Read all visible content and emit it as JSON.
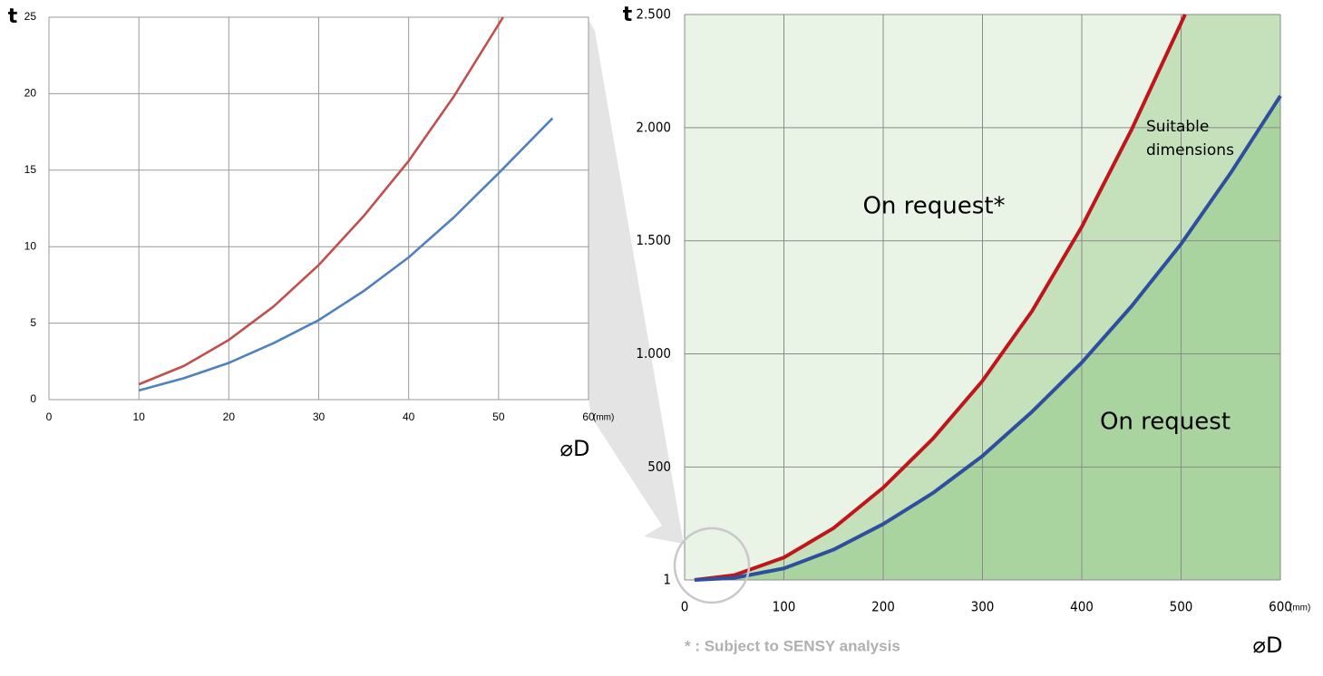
{
  "chart_data": [
    {
      "type": "line",
      "y_label": "t",
      "x_label": "⌀D",
      "x_unit": "(mm)",
      "xlim": [
        0,
        60
      ],
      "xticks": [
        0,
        10,
        20,
        30,
        40,
        50,
        60
      ],
      "ylim": [
        0,
        25
      ],
      "yticks": [
        0,
        5,
        10,
        15,
        20,
        25
      ],
      "grid": true,
      "series": [
        {
          "color": "#c0504d",
          "x": [
            10,
            15,
            20,
            25,
            30,
            35,
            40,
            45,
            50.5
          ],
          "values": [
            1.0,
            2.2,
            3.9,
            6.1,
            8.8,
            12.0,
            15.6,
            19.8,
            25
          ]
        },
        {
          "color": "#4f81bd",
          "x": [
            10,
            15,
            20,
            25,
            30,
            35,
            40,
            45,
            50,
            56
          ],
          "values": [
            0.6,
            1.4,
            2.4,
            3.7,
            5.2,
            7.1,
            9.3,
            11.9,
            14.8,
            18.4
          ]
        }
      ]
    },
    {
      "type": "line",
      "y_label": "t",
      "x_label": "⌀D",
      "x_unit": "(mm)",
      "xlim": [
        0,
        600
      ],
      "xticks": [
        0,
        100,
        200,
        300,
        400,
        500,
        600
      ],
      "ylim": [
        1,
        2500
      ],
      "yticks": [
        1,
        500,
        {
          "value": 1000,
          "label": "1.000"
        },
        {
          "value": 1500,
          "label": "1.500"
        },
        {
          "value": 2000,
          "label": "2.000"
        },
        {
          "value": 2500,
          "label": "2.500"
        }
      ],
      "grid": true,
      "fill_colors": [
        "#eaf4e6",
        "#c4e1bb",
        "#aad49f"
      ],
      "series": [
        {
          "color": "#c0161b",
          "x": [
            10,
            50,
            100,
            150,
            200,
            250,
            300,
            350,
            400,
            450,
            504
          ],
          "values": [
            1,
            22,
            100,
            230,
            409,
            625,
            881,
            1190,
            1562,
            1990,
            2500
          ]
        },
        {
          "color": "#2e4f9e",
          "x": [
            10,
            50,
            100,
            150,
            200,
            250,
            300,
            350,
            400,
            450,
            500,
            550,
            600
          ],
          "values": [
            1,
            10,
            52,
            135,
            248,
            385,
            549,
            745,
            962,
            1210,
            1486,
            1800,
            2140
          ]
        }
      ],
      "annotations": [
        "On request*",
        "Suitable dimensions",
        "On request"
      ],
      "footnote": "* : Subject to SENSY analysis"
    }
  ]
}
